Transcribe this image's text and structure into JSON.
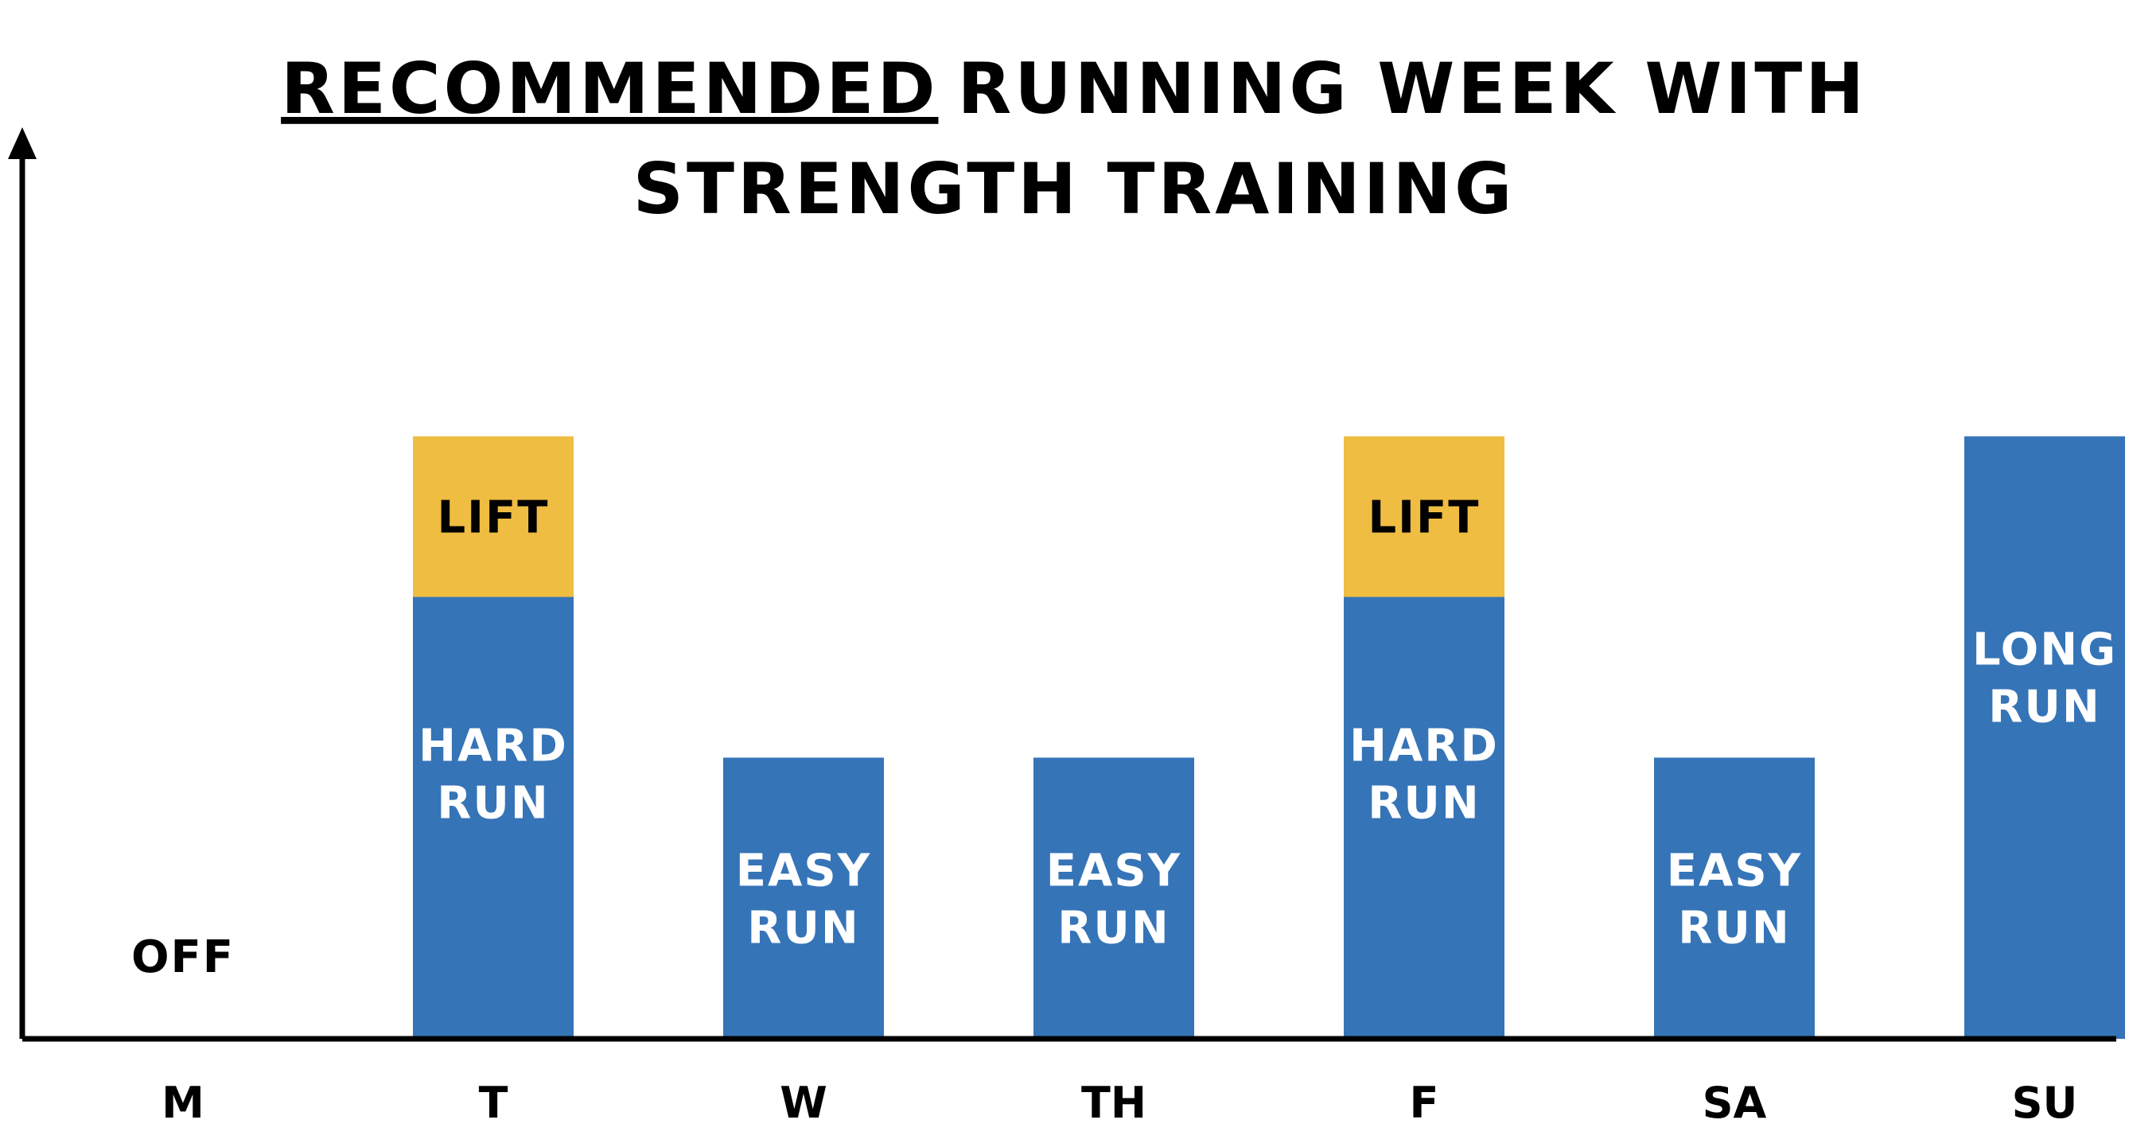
{
  "title": {
    "underlined": "RECOMMENDED",
    "line1_rest": "RUNNING WEEK WITH",
    "line2": "STRENGTH TRAINING"
  },
  "colors": {
    "run": "#3574b7",
    "lift": "#efbd42",
    "run_text": "#ffffff",
    "lift_text": "#000000",
    "axis": "#000000"
  },
  "chart_data": {
    "type": "bar",
    "stacked": true,
    "categories": [
      "M",
      "T",
      "W",
      "TH",
      "F",
      "SA",
      "SU"
    ],
    "ylim": [
      0,
      4
    ],
    "grid": false,
    "legend": "none",
    "series": [
      {
        "values": [
          0,
          2.75,
          1.75,
          1.75,
          2.75,
          1.75,
          3.75
        ],
        "labels": [
          [
            "OFF"
          ],
          [
            "HARD",
            "RUN"
          ],
          [
            "EASY",
            "RUN"
          ],
          [
            "EASY",
            "RUN"
          ],
          [
            "HARD",
            "RUN"
          ],
          [
            "EASY",
            "RUN"
          ],
          [
            "LONG",
            "RUN"
          ]
        ]
      },
      {
        "values": [
          0,
          1,
          0,
          0,
          1,
          0,
          0
        ],
        "labels": [
          [],
          [
            "LIFT"
          ],
          [],
          [],
          [
            "LIFT"
          ],
          [],
          []
        ]
      }
    ]
  }
}
